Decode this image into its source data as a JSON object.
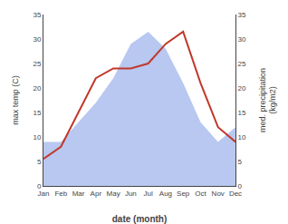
{
  "chart_data": {
    "type": "line",
    "categories": [
      "Jan",
      "Feb",
      "Mar",
      "Apr",
      "May",
      "Jun",
      "Jul",
      "Aug",
      "Sep",
      "Oct",
      "Nov",
      "Dec"
    ],
    "series": [
      {
        "type": "area",
        "color": "#b8c8f0",
        "axis": "y2",
        "values": [
          9.0,
          9.0,
          13.0,
          17.0,
          22.0,
          29.0,
          31.5,
          28.0,
          21.0,
          13.0,
          9.0,
          12.0
        ]
      },
      {
        "type": "line",
        "color": "#c0392b",
        "values": [
          5.5,
          8.0,
          15.0,
          22.0,
          24.0,
          24.0,
          25.0,
          29.0,
          31.5,
          21.0,
          12.0,
          9.0
        ]
      }
    ],
    "xlabel": "date (month)",
    "ylabel": "max temp (C)",
    "y2label": "med. precipitation\n(kg/m2)",
    "ylim": [
      0,
      35
    ],
    "yticks": [
      0,
      5,
      10,
      15,
      20,
      25,
      30,
      35
    ],
    "y2lim": [
      0,
      35
    ],
    "y2ticks": [
      0,
      5,
      10,
      15,
      20,
      25,
      30,
      35
    ],
    "grid": false
  }
}
